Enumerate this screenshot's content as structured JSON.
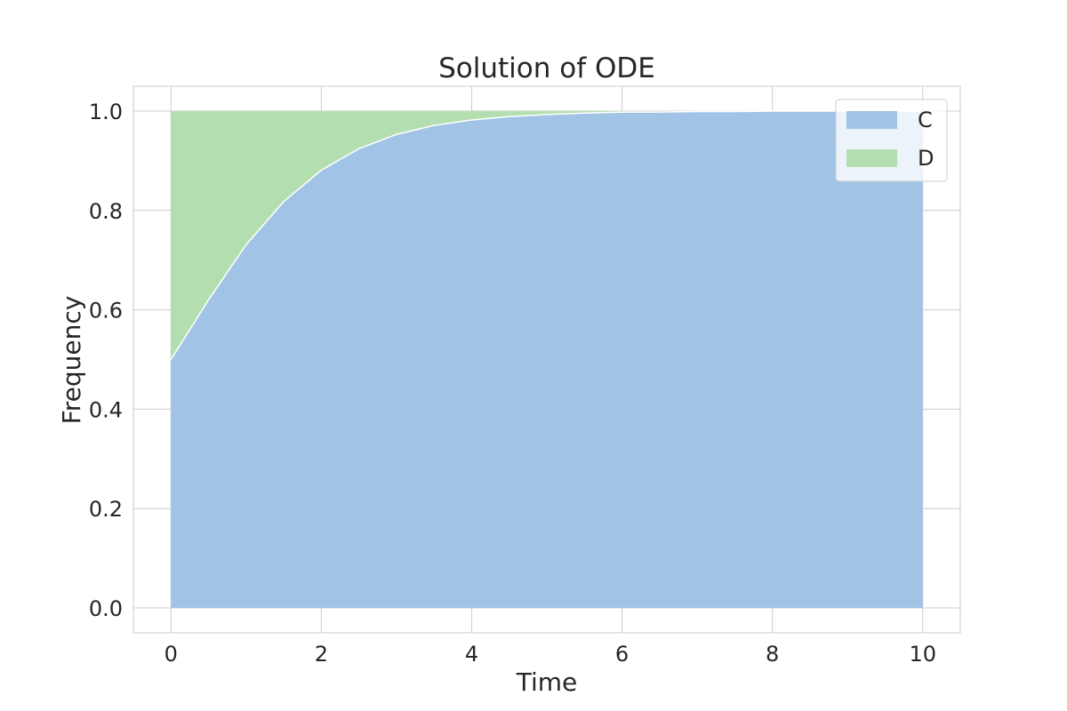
{
  "chart_data": {
    "type": "area",
    "stacked": true,
    "title": "Solution of ODE",
    "xlabel": "Time",
    "ylabel": "Frequency",
    "xlim": [
      -0.5,
      10.5
    ],
    "ylim": [
      -0.05,
      1.05
    ],
    "xticks": [
      0,
      2,
      4,
      6,
      8,
      10
    ],
    "yticks": [
      0.0,
      0.2,
      0.4,
      0.6,
      0.8,
      1.0
    ],
    "xtick_labels": [
      "0",
      "2",
      "4",
      "6",
      "8",
      "10"
    ],
    "ytick_labels": [
      "0.0",
      "0.2",
      "0.4",
      "0.6",
      "0.8",
      "1.0"
    ],
    "grid": true,
    "legend_position": "top-right",
    "x": [
      0,
      0.5,
      1,
      1.5,
      2,
      2.5,
      3,
      3.5,
      4,
      4.5,
      5,
      5.5,
      6,
      6.5,
      7,
      7.5,
      8,
      8.5,
      9,
      9.5,
      10
    ],
    "series": [
      {
        "name": "C",
        "color": "#a1c4e6",
        "values": [
          0.5,
          0.62,
          0.731,
          0.818,
          0.881,
          0.924,
          0.953,
          0.971,
          0.982,
          0.989,
          0.993,
          0.996,
          0.998,
          0.998,
          0.999,
          0.999,
          1.0,
          1.0,
          1.0,
          1.0,
          1.0
        ]
      },
      {
        "name": "D",
        "color": "#b3dfb0",
        "values": [
          0.5,
          0.38,
          0.269,
          0.182,
          0.119,
          0.076,
          0.047,
          0.029,
          0.018,
          0.011,
          0.007,
          0.004,
          0.002,
          0.002,
          0.001,
          0.001,
          0.0,
          0.0,
          0.0,
          0.0,
          0.0
        ]
      }
    ]
  }
}
